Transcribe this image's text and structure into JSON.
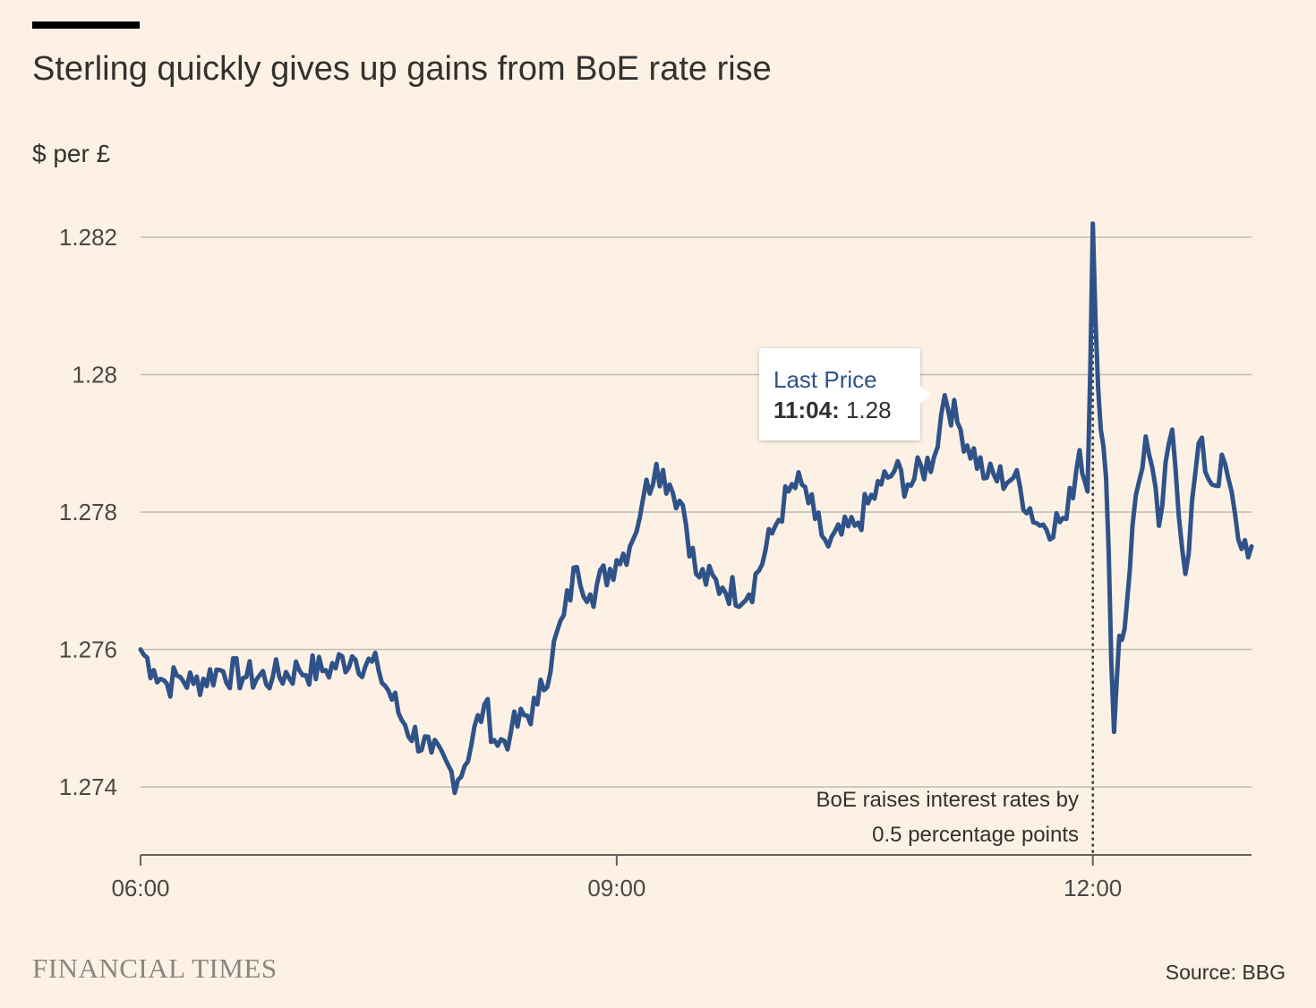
{
  "header": {
    "title": "Sterling quickly gives up gains from BoE rate rise",
    "unit_label": "$ per £"
  },
  "tooltip": {
    "title": "Last Price",
    "time": "11:04:",
    "value": "1.28"
  },
  "annotation": {
    "line1": "BoE raises interest rates by",
    "line2": "0.5 percentage points"
  },
  "footer": {
    "brand": "FINANCIAL TIMES",
    "source": "Source: BBG"
  },
  "colors": {
    "background": "#fdf1e5",
    "line": "#2f5388",
    "grid": "#c2bbb4"
  },
  "chart_data": {
    "type": "line",
    "title": "Sterling quickly gives up gains from BoE rate rise",
    "ylabel": "$ per £",
    "xlabel": "",
    "x_unit": "time (HH:MM)",
    "xlim": [
      "06:00",
      "13:00"
    ],
    "ylim": [
      1.273,
      1.2825
    ],
    "x_ticks": [
      "06:00",
      "09:00",
      "12:00"
    ],
    "y_ticks": [
      1.274,
      1.276,
      1.278,
      1.28,
      1.282
    ],
    "y_tick_labels": [
      "1.274",
      "1.276",
      "1.278",
      "1.28",
      "1.282"
    ],
    "grid": "horizontal",
    "annotations": [
      {
        "x": "12:00",
        "text": "BoE raises interest rates by 0.5 percentage points",
        "style": "dotted vertical line"
      }
    ],
    "series": [
      {
        "x": [
          "06:00",
          "06:05",
          "06:10",
          "06:15",
          "06:20",
          "06:30",
          "06:40",
          "06:50",
          "07:00",
          "07:10",
          "07:20",
          "07:30",
          "07:40",
          "07:50",
          "08:00",
          "08:10",
          "08:15",
          "08:20",
          "08:30",
          "08:40",
          "08:45",
          "08:50",
          "09:00",
          "09:05",
          "09:10",
          "09:15",
          "09:20",
          "09:25",
          "09:30",
          "09:40",
          "09:50",
          "10:00",
          "10:05",
          "10:10",
          "10:15",
          "10:20",
          "10:30",
          "10:40",
          "10:45",
          "10:50",
          "11:00",
          "11:04",
          "11:10",
          "11:20",
          "11:30",
          "11:40",
          "11:50",
          "11:55",
          "11:58",
          "12:00",
          "12:01",
          "12:03",
          "12:05",
          "12:08",
          "12:10",
          "12:12",
          "12:15",
          "12:20",
          "12:25",
          "12:30",
          "12:35",
          "12:40",
          "12:45",
          "12:50",
          "12:55",
          "13:00"
        ],
        "values": [
          1.276,
          1.2757,
          1.2755,
          1.2756,
          1.2755,
          1.2757,
          1.2756,
          1.2756,
          1.2757,
          1.2757,
          1.2759,
          1.2757,
          1.2749,
          1.2745,
          1.2741,
          1.2752,
          1.2746,
          1.2748,
          1.2752,
          1.2765,
          1.2772,
          1.2768,
          1.2773,
          1.2775,
          1.2782,
          1.2787,
          1.2784,
          1.2781,
          1.2771,
          1.2769,
          1.2768,
          1.2778,
          1.2783,
          1.2784,
          1.2779,
          1.2775,
          1.2778,
          1.2784,
          1.2786,
          1.2784,
          1.2788,
          1.2797,
          1.2792,
          1.2785,
          1.2785,
          1.2778,
          1.2779,
          1.2789,
          1.2783,
          1.2822,
          1.2808,
          1.2792,
          1.2785,
          1.2748,
          1.2762,
          1.2763,
          1.2778,
          1.2791,
          1.2778,
          1.2792,
          1.2771,
          1.279,
          1.2784,
          1.2787,
          1.2776,
          1.2775
        ]
      }
    ]
  }
}
